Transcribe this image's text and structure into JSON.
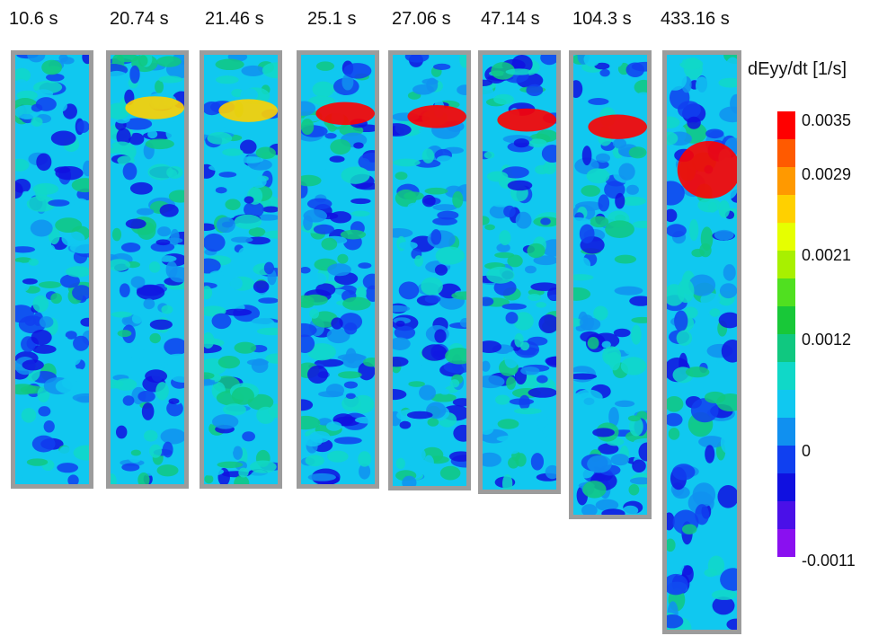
{
  "frames": [
    {
      "time_label": "10.6 s"
    },
    {
      "time_label": "20.74 s"
    },
    {
      "time_label": "21.46 s"
    },
    {
      "time_label": "25.1 s"
    },
    {
      "time_label": "27.06 s"
    },
    {
      "time_label": "47.14 s"
    },
    {
      "time_label": "104.3 s"
    },
    {
      "time_label": "433.16 s"
    }
  ],
  "colorbar": {
    "title": "dEyy/dt [1/s]",
    "ticks": [
      {
        "label": "0.0035"
      },
      {
        "label": "0.0029"
      },
      {
        "label": "0.0021"
      },
      {
        "label": "0.0012"
      },
      {
        "label": "0"
      },
      {
        "label": "-0.0011"
      }
    ],
    "colors": [
      "#ff0000",
      "#ff5a00",
      "#ff9900",
      "#ffd000",
      "#e6ff00",
      "#a8f000",
      "#50e020",
      "#18c838",
      "#10c880",
      "#10d8c8",
      "#10c8f0",
      "#1090f0",
      "#1040f0",
      "#1010e0",
      "#4a10e8",
      "#8a10f0"
    ]
  }
}
